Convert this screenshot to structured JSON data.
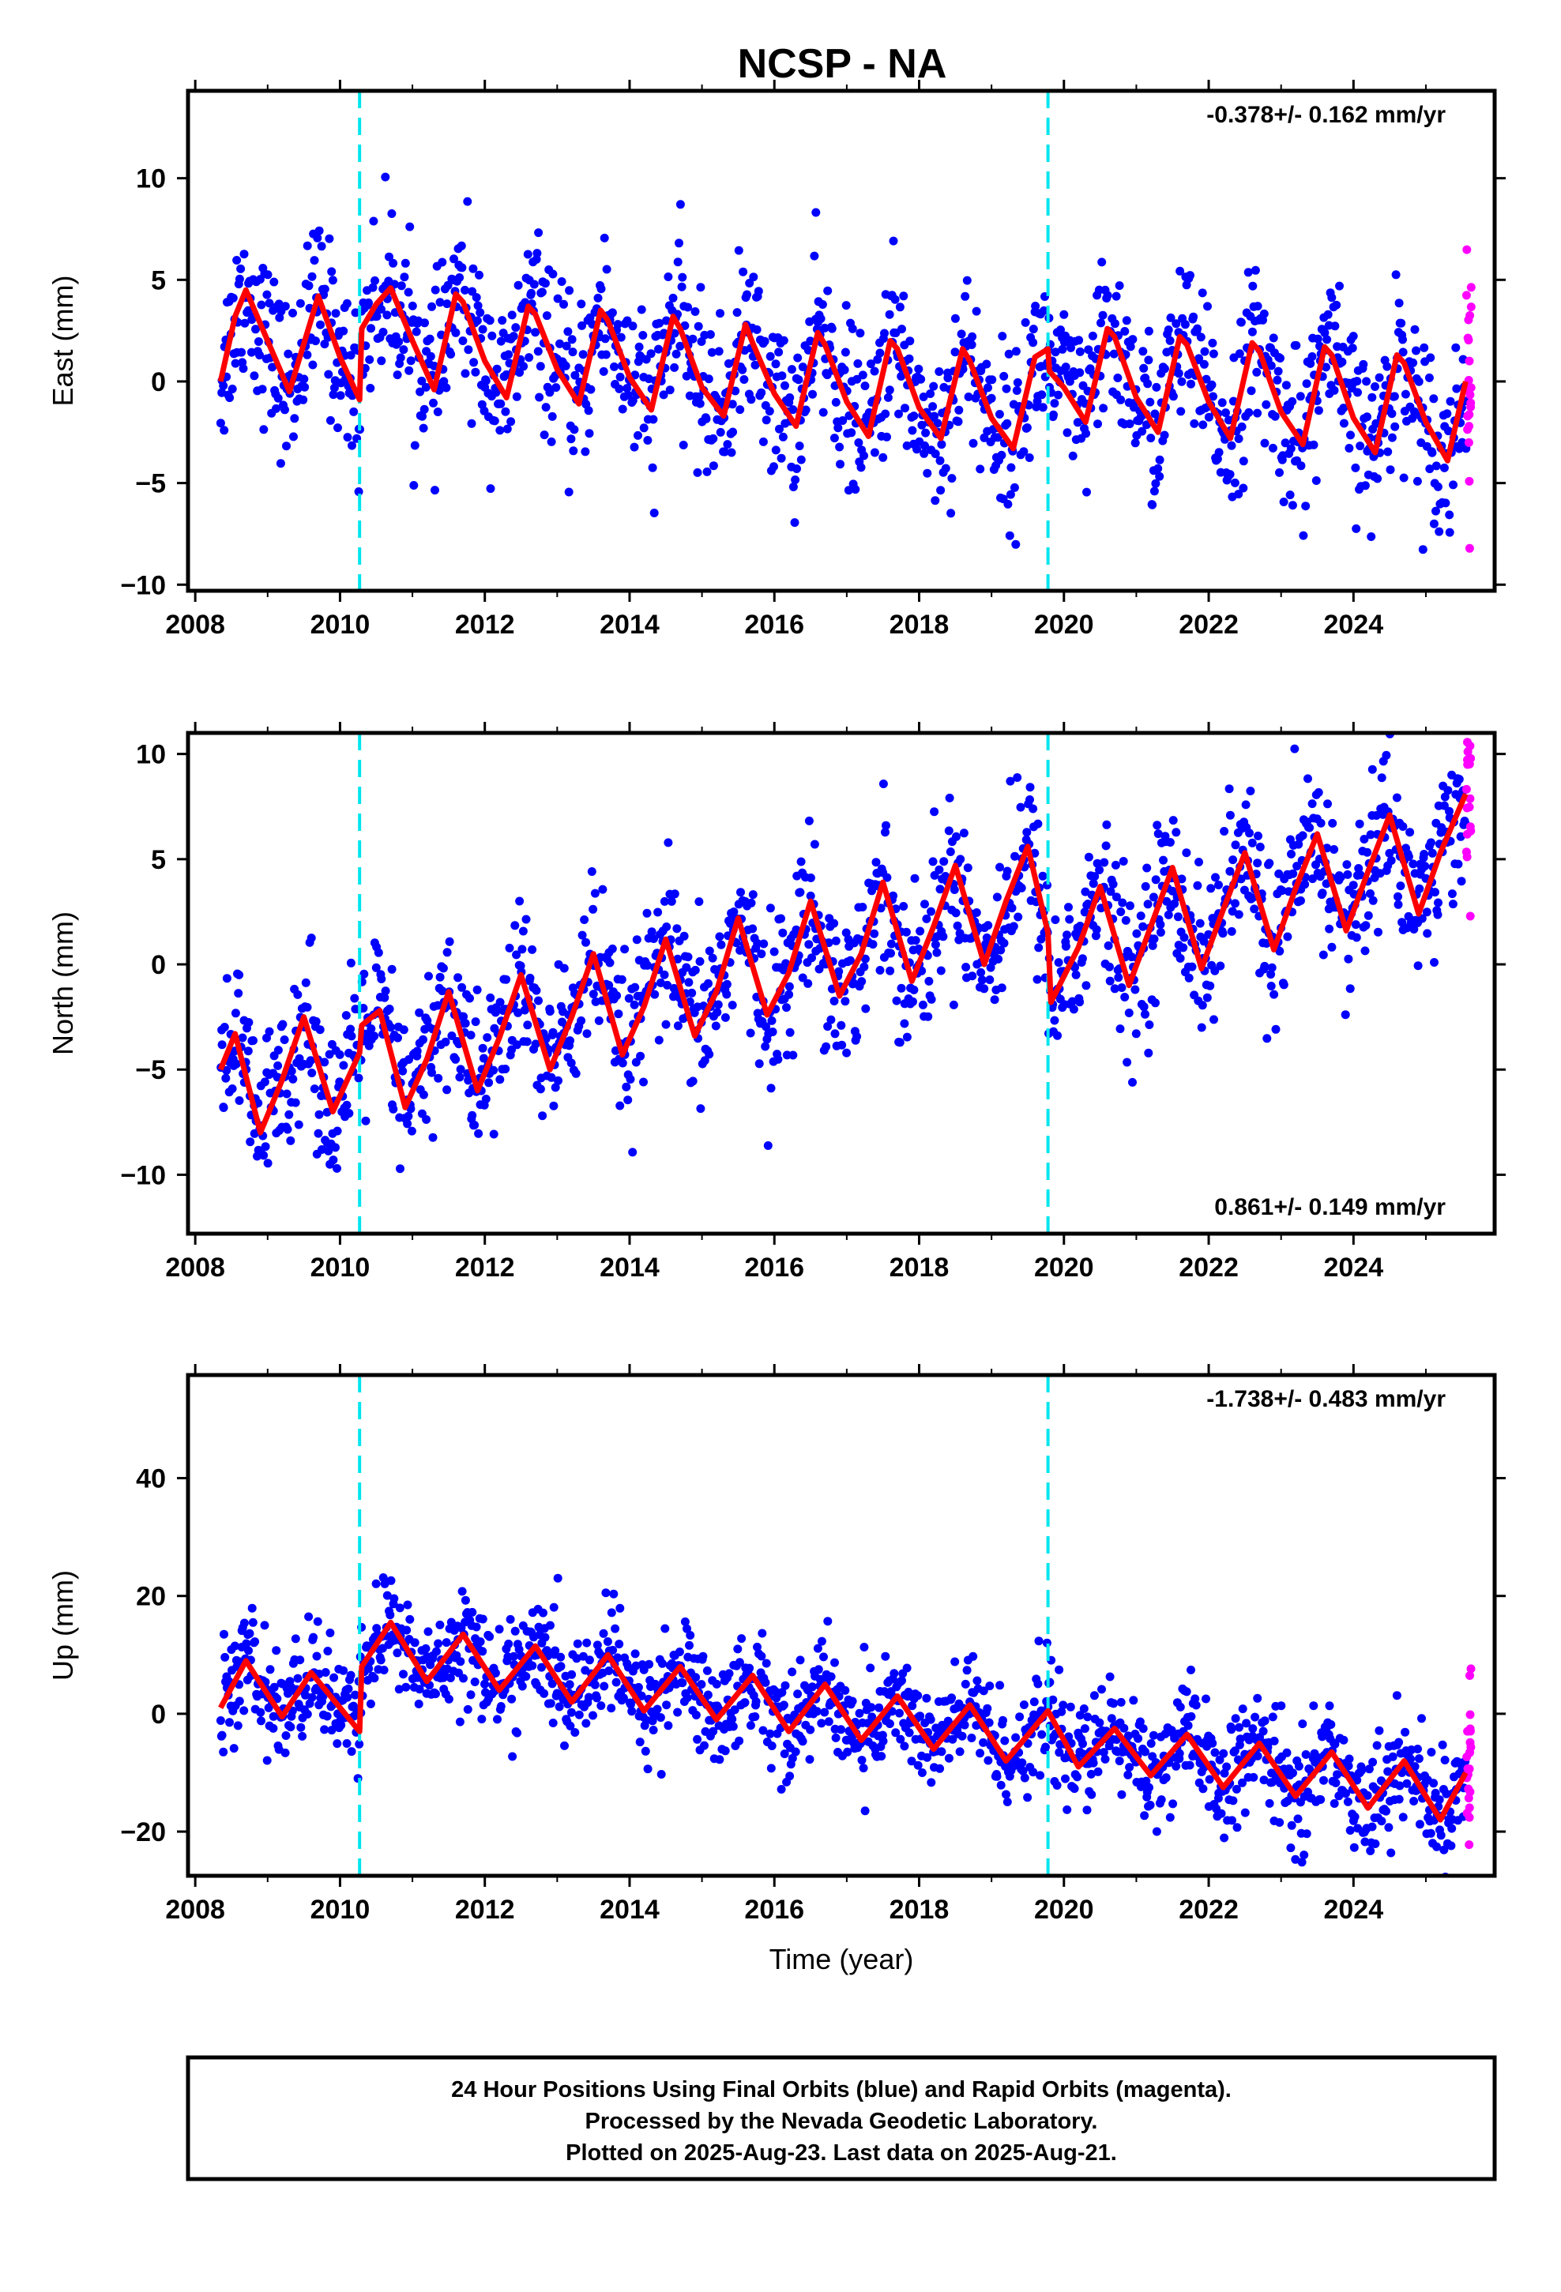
{
  "title": "NCSP - NA",
  "colors": {
    "final_orbits": "#0000ff",
    "rapid_orbits": "#ff00ff",
    "model": "#ff0000",
    "equipment_change": "#00e5ee"
  },
  "chart_data": [
    {
      "type": "scatter",
      "component": "east",
      "ylabel": "East (mm)",
      "xlabel": "",
      "rate_label": "-0.378+/- 0.162 mm/yr",
      "rate_position": "top-right",
      "xlim": [
        2007.9,
        2025.95
      ],
      "ylim": [
        -10.3,
        14.3
      ],
      "x_ticks": [
        2008,
        2010,
        2012,
        2014,
        2016,
        2018,
        2020,
        2022,
        2024
      ],
      "x_tick_labels": [
        "2008",
        "2010",
        "2012",
        "2014",
        "2016",
        "2018",
        "2020",
        "2022",
        "2024"
      ],
      "y_ticks": [
        -10,
        -5,
        0,
        5,
        10
      ],
      "y_tick_labels": [
        "−10",
        "−5",
        "0",
        "5",
        "10"
      ],
      "grid": false,
      "series": [
        {
          "type": "line",
          "x": [
            2008.35,
            2008.55,
            2008.7,
            2009.0,
            2009.3,
            2009.7,
            2010.0,
            2010.27,
            2010.3,
            2010.5,
            2010.7,
            2011.0,
            2011.3,
            2011.6,
            2011.7,
            2012.0,
            2012.3,
            2012.6,
            2012.7,
            2013.0,
            2013.3,
            2013.6,
            2013.7,
            2014.0,
            2014.3,
            2014.6,
            2014.7,
            2015.0,
            2015.3,
            2015.6,
            2015.7,
            2016.0,
            2016.3,
            2016.6,
            2016.7,
            2017.0,
            2017.3,
            2017.6,
            2017.7,
            2018.0,
            2018.3,
            2018.6,
            2018.7,
            2019.0,
            2019.3,
            2019.6,
            2019.78,
            2019.8,
            2020.0,
            2020.3,
            2020.6,
            2020.7,
            2021.0,
            2021.3,
            2021.6,
            2021.7,
            2022.0,
            2022.3,
            2022.6,
            2022.7,
            2023.0,
            2023.3,
            2023.6,
            2023.7,
            2024.0,
            2024.3,
            2024.6,
            2024.7,
            2025.0,
            2025.3,
            2025.55
          ],
          "y": [
            0.0,
            3.2,
            4.5,
            2.0,
            -0.5,
            4.2,
            1.2,
            -0.9,
            2.6,
            3.8,
            4.6,
            2.0,
            -0.4,
            4.3,
            3.9,
            1.0,
            -0.8,
            3.7,
            3.3,
            0.6,
            -1.1,
            3.5,
            3.0,
            0.2,
            -1.4,
            3.2,
            2.6,
            -0.3,
            -1.7,
            2.8,
            1.9,
            -0.6,
            -2.2,
            2.4,
            1.8,
            -1.0,
            -2.7,
            2.0,
            1.6,
            -1.3,
            -2.8,
            1.6,
            1.0,
            -1.8,
            -3.3,
            1.2,
            1.6,
            0.5,
            -0.3,
            -2.0,
            2.6,
            2.2,
            -0.8,
            -2.5,
            2.2,
            1.8,
            -1.0,
            -2.8,
            1.9,
            1.5,
            -1.5,
            -3.1,
            1.7,
            1.3,
            -1.8,
            -3.5,
            1.3,
            0.9,
            -2.0,
            -3.9,
            0.0
          ]
        }
      ]
    },
    {
      "type": "scatter",
      "component": "north",
      "ylabel": "North (mm)",
      "xlabel": "",
      "rate_label": "0.861+/- 0.149 mm/yr",
      "rate_position": "bottom-right",
      "xlim": [
        2007.9,
        2025.95
      ],
      "ylim": [
        -12.8,
        11.0
      ],
      "x_ticks": [
        2008,
        2010,
        2012,
        2014,
        2016,
        2018,
        2020,
        2022,
        2024
      ],
      "x_tick_labels": [
        "2008",
        "2010",
        "2012",
        "2014",
        "2016",
        "2018",
        "2020",
        "2022",
        "2024"
      ],
      "y_ticks": [
        -10,
        -5,
        0,
        5,
        10
      ],
      "y_tick_labels": [
        "−10",
        "−5",
        "0",
        "5",
        "10"
      ],
      "grid": false,
      "series": [
        {
          "type": "line",
          "x": [
            2008.35,
            2008.55,
            2008.9,
            2009.2,
            2009.5,
            2009.9,
            2010.27,
            2010.3,
            2010.55,
            2010.9,
            2011.2,
            2011.5,
            2011.9,
            2012.2,
            2012.5,
            2012.9,
            2013.2,
            2013.5,
            2013.9,
            2014.2,
            2014.5,
            2014.9,
            2015.2,
            2015.5,
            2015.9,
            2016.2,
            2016.5,
            2016.9,
            2017.2,
            2017.5,
            2017.9,
            2018.2,
            2018.5,
            2018.9,
            2019.2,
            2019.5,
            2019.78,
            2019.82,
            2020.2,
            2020.5,
            2020.9,
            2021.2,
            2021.5,
            2021.9,
            2022.2,
            2022.5,
            2022.9,
            2023.2,
            2023.5,
            2023.9,
            2024.2,
            2024.5,
            2024.9,
            2025.2,
            2025.55
          ],
          "y": [
            -5.0,
            -3.3,
            -8.0,
            -5.5,
            -2.5,
            -7.0,
            -4.2,
            -2.9,
            -2.2,
            -6.8,
            -4.5,
            -1.3,
            -6.0,
            -3.5,
            -0.5,
            -5.0,
            -2.5,
            0.5,
            -4.3,
            -2.0,
            1.2,
            -3.4,
            -1.3,
            2.2,
            -2.4,
            -0.4,
            3.0,
            -1.5,
            0.5,
            3.9,
            -0.8,
            1.8,
            4.7,
            0.0,
            3.0,
            5.6,
            1.5,
            -1.8,
            0.8,
            3.7,
            -1.0,
            1.8,
            4.6,
            -0.2,
            2.6,
            5.3,
            0.7,
            3.6,
            6.2,
            1.6,
            4.4,
            7.1,
            2.4,
            5.3,
            8.1
          ]
        }
      ]
    },
    {
      "type": "scatter",
      "component": "up",
      "ylabel": "Up (mm)",
      "xlabel": "Time (year)",
      "rate_label": "-1.738+/- 0.483 mm/yr",
      "rate_position": "top-right",
      "xlim": [
        2007.9,
        2025.95
      ],
      "ylim": [
        -27.5,
        57.5
      ],
      "x_ticks": [
        2008,
        2010,
        2012,
        2014,
        2016,
        2018,
        2020,
        2022,
        2024
      ],
      "x_tick_labels": [
        "2008",
        "2010",
        "2012",
        "2014",
        "2016",
        "2018",
        "2020",
        "2022",
        "2024"
      ],
      "y_ticks": [
        -20,
        0,
        20,
        40
      ],
      "y_tick_labels": [
        "−20",
        "0",
        "20",
        "40"
      ],
      "grid": false,
      "series": [
        {
          "type": "line",
          "x": [
            2008.35,
            2008.7,
            2009.2,
            2009.6,
            2010.27,
            2010.3,
            2010.7,
            2011.2,
            2011.7,
            2012.2,
            2012.7,
            2013.2,
            2013.7,
            2014.2,
            2014.7,
            2015.2,
            2015.7,
            2016.2,
            2016.7,
            2017.2,
            2017.7,
            2018.2,
            2018.7,
            2019.2,
            2019.78,
            2020.2,
            2020.7,
            2021.2,
            2021.7,
            2022.2,
            2022.7,
            2023.2,
            2023.7,
            2024.2,
            2024.7,
            2025.2,
            2025.55
          ],
          "y": [
            1.0,
            9.0,
            -0.5,
            7.0,
            -3.0,
            8.0,
            15.5,
            5.5,
            13.5,
            4.0,
            11.5,
            2.0,
            10.0,
            0.5,
            8.0,
            -1.0,
            6.5,
            -3.0,
            5.0,
            -4.5,
            3.0,
            -6.0,
            1.5,
            -8.0,
            0.5,
            -9.0,
            -2.5,
            -10.5,
            -3.5,
            -12.5,
            -5.0,
            -14.0,
            -6.5,
            -16.0,
            -8.0,
            -18.0,
            -10.0
          ]
        }
      ]
    }
  ],
  "equipment_changes": [
    2010.27,
    2019.78
  ],
  "footer": {
    "line1": "24 Hour Positions Using Final Orbits (blue) and Rapid Orbits (magenta).",
    "line2": "Processed by the Nevada Geodetic Laboratory.",
    "line3": "Plotted on 2025-Aug-23. Last data on 2025-Aug-21."
  }
}
